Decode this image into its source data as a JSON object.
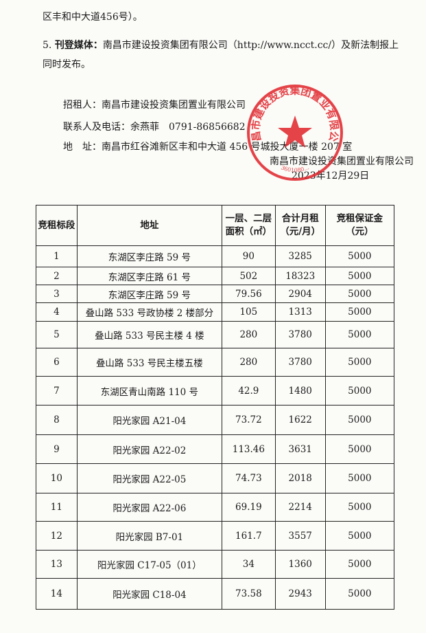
{
  "intro": {
    "continuation": "区丰和中大道456号）。",
    "item5": {
      "number": "5.",
      "label": "刊登媒体：",
      "text": "南昌市建设投资集团有限公司（http://www.ncct.cc/）及新法制报上同时发布。"
    }
  },
  "contact": {
    "lessor_label": "招租人：",
    "lessor": "南昌市建设投资集团置业有限公司",
    "person_label": "联系人及电话：",
    "person": "余燕菲　0791-86856682",
    "address_label": "地　址：",
    "address": "南昌市红谷滩新区丰和中大道 456 号城投大厦一楼 207 室"
  },
  "signature": {
    "company": "南昌市建设投资集团置业有限公司",
    "date": "2023年12月29日"
  },
  "stamp": {
    "text": "南昌市建设投资集团置业有限公司",
    "number": "3601080..."
  },
  "table": {
    "headers": [
      "竞租标段",
      "地址",
      "一层、二层面积（㎡）",
      "合计月租（元/月）",
      "竞租保证金（元）"
    ],
    "rows": [
      [
        1,
        "东湖区李庄路 59 号",
        90,
        3285,
        5000
      ],
      [
        2,
        "东湖区李庄路 61 号",
        502,
        18323,
        5000
      ],
      [
        3,
        "东湖区李庄路 59 号",
        79.56,
        2904,
        5000
      ],
      [
        4,
        "叠山路 533 号政协楼 2 楼部分",
        105,
        1313,
        5000
      ],
      [
        5,
        "叠山路 533 号民主楼 4 楼",
        280,
        3780,
        5000
      ],
      [
        6,
        "叠山路 533 号民主楼五楼",
        280,
        3780,
        5000
      ],
      [
        7,
        "东湖区青山南路 110 号",
        42.9,
        1480,
        5000
      ],
      [
        8,
        "阳光家园 A21-04",
        73.72,
        1622,
        5000
      ],
      [
        9,
        "阳光家园 A22-02",
        113.46,
        3631,
        5000
      ],
      [
        10,
        "阳光家园 A22-05",
        74.73,
        2018,
        5000
      ],
      [
        11,
        "阳光家园 A22-06",
        69.19,
        2214,
        5000
      ],
      [
        12,
        "阳光家园 B7-01",
        161.7,
        3557,
        5000
      ],
      [
        13,
        "阳光家园 C17-05（01）",
        34,
        1360,
        5000
      ],
      [
        14,
        "阳光家园 C18-04",
        73.58,
        2943,
        5000
      ]
    ]
  }
}
